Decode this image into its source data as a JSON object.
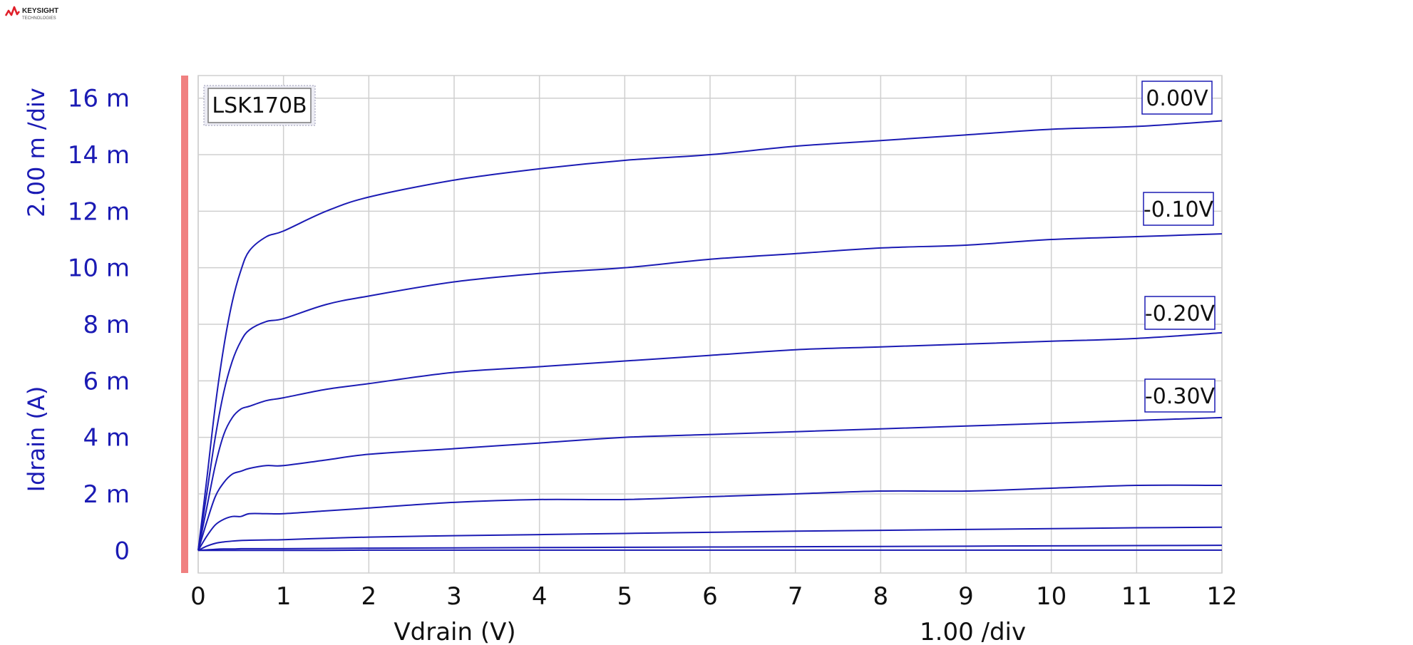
{
  "brand": {
    "name": "KEYSIGHT",
    "sub": "TECHNOLOGIES"
  },
  "chart_data": {
    "type": "line",
    "title": "LSK170B",
    "xlabel": "Vdrain (V)",
    "ylabel": "Idrain (A)",
    "x_div_label": "1.00  /div",
    "y_div_label": "2.00 m /div",
    "xlim": [
      0,
      12
    ],
    "ylim": [
      -0.0008,
      0.0168
    ],
    "x_ticks": [
      {
        "value": 0,
        "label": "0"
      },
      {
        "value": 1,
        "label": "1"
      },
      {
        "value": 2,
        "label": "2"
      },
      {
        "value": 3,
        "label": "3"
      },
      {
        "value": 4,
        "label": "4"
      },
      {
        "value": 5,
        "label": "5"
      },
      {
        "value": 6,
        "label": "6"
      },
      {
        "value": 7,
        "label": "7"
      },
      {
        "value": 8,
        "label": "8"
      },
      {
        "value": 9,
        "label": "9"
      },
      {
        "value": 10,
        "label": "10"
      },
      {
        "value": 11,
        "label": "11"
      },
      {
        "value": 12,
        "label": "12"
      }
    ],
    "y_ticks": [
      {
        "value": 0,
        "label": "0"
      },
      {
        "value": 0.002,
        "label": "2 m"
      },
      {
        "value": 0.004,
        "label": "4 m"
      },
      {
        "value": 0.006,
        "label": "6 m"
      },
      {
        "value": 0.008,
        "label": "8 m"
      },
      {
        "value": 0.01,
        "label": "10 m"
      },
      {
        "value": 0.012,
        "label": "12 m"
      },
      {
        "value": 0.014,
        "label": "14 m"
      },
      {
        "value": 0.016,
        "label": "16 m"
      }
    ],
    "grid": true,
    "line_color": "#1b1bb4",
    "accent_bar_color": "#f08080",
    "x": [
      0,
      0.1,
      0.2,
      0.3,
      0.4,
      0.5,
      0.6,
      0.8,
      1,
      1.5,
      2,
      3,
      4,
      5,
      6,
      7,
      8,
      9,
      10,
      11,
      12
    ],
    "series": [
      {
        "label": "0.00V",
        "values": [
          0,
          0.0025,
          0.0051,
          0.0072,
          0.0088,
          0.0099,
          0.0106,
          0.0111,
          0.0113,
          0.012,
          0.0125,
          0.0131,
          0.0135,
          0.0138,
          0.014,
          0.0143,
          0.0145,
          0.0147,
          0.0149,
          0.015,
          0.0152
        ]
      },
      {
        "label": "-0.10V",
        "values": [
          0,
          0.002,
          0.004,
          0.0056,
          0.0067,
          0.0074,
          0.0078,
          0.0081,
          0.0082,
          0.0087,
          0.009,
          0.0095,
          0.0098,
          0.01,
          0.0103,
          0.0105,
          0.0107,
          0.0108,
          0.011,
          0.0111,
          0.0112
        ]
      },
      {
        "label": "-0.20V",
        "values": [
          0,
          0.0015,
          0.003,
          0.0041,
          0.0047,
          0.005,
          0.0051,
          0.0053,
          0.0054,
          0.0057,
          0.0059,
          0.0063,
          0.0065,
          0.0067,
          0.0069,
          0.0071,
          0.0072,
          0.0073,
          0.0074,
          0.0075,
          0.0077
        ]
      },
      {
        "label": "-0.30V",
        "values": [
          0,
          0.001,
          0.0019,
          0.0024,
          0.0027,
          0.0028,
          0.0029,
          0.003,
          0.003,
          0.0032,
          0.0034,
          0.0036,
          0.0038,
          0.004,
          0.0041,
          0.0042,
          0.0043,
          0.0044,
          0.0045,
          0.0046,
          0.0047
        ]
      },
      {
        "values": [
          0,
          0.0005,
          0.0009,
          0.0011,
          0.0012,
          0.0012,
          0.0013,
          0.0013,
          0.0013,
          0.0014,
          0.0015,
          0.0017,
          0.0018,
          0.0018,
          0.0019,
          0.002,
          0.0021,
          0.0021,
          0.0022,
          0.0023,
          0.0023
        ]
      },
      {
        "values": [
          0,
          0.00015,
          0.00025,
          0.0003,
          0.00033,
          0.00035,
          0.00036,
          0.00037,
          0.00038,
          0.00043,
          0.00047,
          0.00052,
          0.00056,
          0.0006,
          0.00064,
          0.00068,
          0.00071,
          0.00074,
          0.00077,
          0.0008,
          0.00082
        ]
      },
      {
        "values": [
          0,
          2e-05,
          4e-05,
          5e-05,
          5e-05,
          6e-05,
          6e-05,
          6e-05,
          6e-05,
          7e-05,
          8e-05,
          9e-05,
          0.0001,
          0.00011,
          0.00012,
          0.00013,
          0.00014,
          0.00015,
          0.00016,
          0.00017,
          0.00018
        ]
      },
      {
        "values": [
          0,
          0,
          0,
          0,
          0,
          0,
          0,
          0,
          0,
          0,
          1e-05,
          1e-05,
          1e-05,
          1e-05,
          1e-05,
          1e-05,
          1e-05,
          1e-05,
          1e-05,
          1e-05,
          1e-05
        ]
      }
    ]
  }
}
